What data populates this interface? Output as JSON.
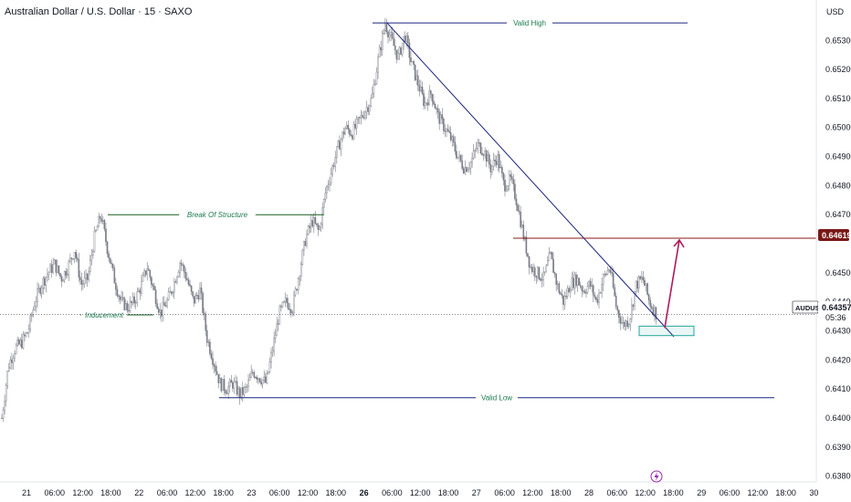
{
  "header": {
    "title": "Australian Dollar / U.S. Dollar · 15 · SAXO",
    "currency": "USD"
  },
  "chart_data": {
    "type": "candlestick",
    "title": "Australian Dollar / U.S. Dollar · 15 · SAXO",
    "symbol": "AUDUSD",
    "interval": "15",
    "source": "SAXO",
    "currency": "USD",
    "y_ticks": [
      "0.65300",
      "0.65200",
      "0.65100",
      "0.65000",
      "0.64900",
      "0.64800",
      "0.64700",
      "0.64500",
      "0.64400",
      "0.64300",
      "0.64200",
      "0.64100",
      "0.64000",
      "0.63900",
      "0.63800"
    ],
    "x_ticks": [
      {
        "label": "21",
        "day": false
      },
      {
        "label": "06:00",
        "day": false
      },
      {
        "label": "12:00",
        "day": false
      },
      {
        "label": "18:00",
        "day": false
      },
      {
        "label": "22",
        "day": false
      },
      {
        "label": "06:00",
        "day": false
      },
      {
        "label": "12:00",
        "day": false
      },
      {
        "label": "18:00",
        "day": false
      },
      {
        "label": "23",
        "day": false
      },
      {
        "label": "06:00",
        "day": false
      },
      {
        "label": "12:00",
        "day": false
      },
      {
        "label": "18:00",
        "day": false
      },
      {
        "label": "26",
        "day": true
      },
      {
        "label": "06:00",
        "day": false
      },
      {
        "label": "12:00",
        "day": false
      },
      {
        "label": "18:00",
        "day": false
      },
      {
        "label": "27",
        "day": false
      },
      {
        "label": "06:00",
        "day": false
      },
      {
        "label": "12:00",
        "day": false
      },
      {
        "label": "18:00",
        "day": false
      },
      {
        "label": "28",
        "day": false
      },
      {
        "label": "06:00",
        "day": false
      },
      {
        "label": "12:00",
        "day": false
      },
      {
        "label": "18:00",
        "day": false
      },
      {
        "label": "29",
        "day": false
      },
      {
        "label": "06:00",
        "day": false
      },
      {
        "label": "12:00",
        "day": false
      },
      {
        "label": "18:00",
        "day": false
      },
      {
        "label": "30",
        "day": false
      }
    ],
    "price_path": [
      0.64,
      0.6418,
      0.6424,
      0.6426,
      0.643,
      0.644,
      0.6446,
      0.645,
      0.6453,
      0.6448,
      0.6452,
      0.6458,
      0.6446,
      0.6448,
      0.6462,
      0.647,
      0.6458,
      0.6448,
      0.644,
      0.6438,
      0.644,
      0.6445,
      0.6452,
      0.6444,
      0.6436,
      0.644,
      0.6446,
      0.6454,
      0.6448,
      0.644,
      0.6444,
      0.6428,
      0.642,
      0.6412,
      0.641,
      0.6412,
      0.6408,
      0.641,
      0.6416,
      0.6414,
      0.6412,
      0.6424,
      0.6436,
      0.644,
      0.6438,
      0.645,
      0.6462,
      0.6468,
      0.6464,
      0.6478,
      0.6486,
      0.6494,
      0.65,
      0.6498,
      0.6502,
      0.6506,
      0.651,
      0.6524,
      0.6536,
      0.653,
      0.6524,
      0.6532,
      0.6522,
      0.6515,
      0.6508,
      0.6512,
      0.6504,
      0.65,
      0.6496,
      0.649,
      0.6486,
      0.6488,
      0.6494,
      0.6492,
      0.6486,
      0.649,
      0.648,
      0.6482,
      0.6474,
      0.6462,
      0.6452,
      0.645,
      0.6448,
      0.6456,
      0.6446,
      0.644,
      0.6446,
      0.6448,
      0.6444,
      0.6446,
      0.644,
      0.6448,
      0.6452,
      0.6438,
      0.6432,
      0.6434,
      0.6446,
      0.6448,
      0.644,
      0.6436
    ],
    "y_range": [
      0.6378,
      0.6537
    ],
    "annotations": [
      {
        "text": "Valid High",
        "type": "horizontal-line",
        "price": 0.6536
      },
      {
        "text": "Break Of Structure",
        "type": "horizontal-line",
        "price": 0.647
      },
      {
        "text": "Inducement",
        "type": "horizontal-line",
        "price": 0.64355
      },
      {
        "text": "Valid Low",
        "type": "horizontal-line",
        "price": 0.6407
      },
      {
        "type": "trendline",
        "from_price": 0.6536,
        "to_price": 0.6428
      },
      {
        "type": "horizontal-line",
        "price": 0.64619,
        "color": "#8b1a1a"
      },
      {
        "type": "arrow",
        "from_price": 0.6431,
        "to_price": 0.64619,
        "color": "#b0195a"
      },
      {
        "type": "box",
        "from_price": 0.6431,
        "to_price": 0.6429
      }
    ],
    "price_labels": [
      {
        "value": "0.64619",
        "color": "#7a1818"
      },
      {
        "name": "AUDUSD",
        "value": "0.64357",
        "countdown": "05:36",
        "color": "#131722"
      }
    ],
    "grid": false,
    "legend": "none"
  }
}
